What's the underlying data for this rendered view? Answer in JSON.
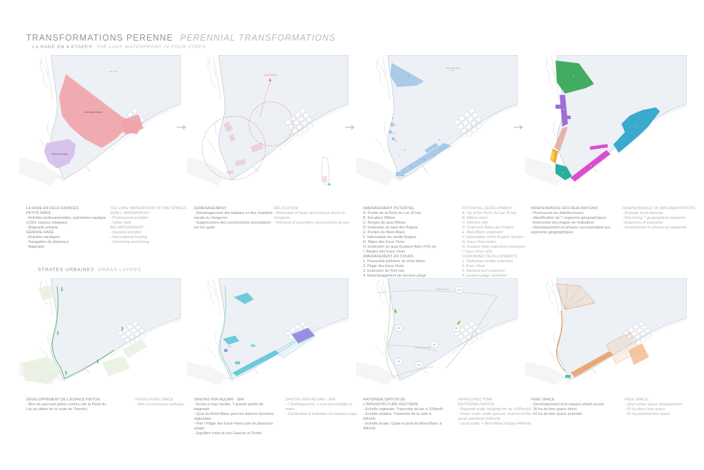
{
  "header": {
    "title_fr": "TRANSFORMATIONS PERENNE",
    "title_en": "PERENNIAL TRANSFORMATIONS",
    "subtitle_fr": "LA RADE EN 4 ETAPES",
    "subtitle_en": "THE LAKE WATERFRONT IN FOUR STEPS"
  },
  "section_urban": {
    "title_fr": "STRATES URBAINES",
    "title_en": "URBAN LAYERS"
  },
  "colors": {
    "grande_rade_pink": "#f0a3a8",
    "petite_rade_purple": "#d4bdea",
    "relocation_red": "#e25c5c",
    "potential_blue": "#9ec3e6",
    "segment_green": "#3aa65a",
    "segment_purple": "#9b6fd6",
    "segment_rose": "#e8b2a8",
    "segment_orange": "#f0a83c",
    "segment_teal": "#28b09c",
    "segment_magenta": "#d94fd0",
    "segment_cyan": "#2fa7c9",
    "walkway_green": "#3aa65a",
    "spa_cyan": "#56c3d8",
    "spa_purple": "#8f86e0",
    "freespace_orange": "#e89050"
  },
  "maps": {
    "map1": {
      "labels": {
        "lake": "LE LAC",
        "grande": "GRANDE RADE",
        "petite": "PETITE RADE"
      }
    },
    "map2": {
      "labels": {
        "vengeron": "VENGERON"
      }
    },
    "map3": {
      "labels": {
        "area1": "GRANDE RADE AREA",
        "area2": "5 HA"
      },
      "markers": [
        "A",
        "B",
        "C",
        "D",
        "E",
        "F",
        "G",
        "H",
        "I"
      ],
      "numbers": [
        "1",
        "2",
        "3",
        "4"
      ]
    },
    "map4": {
      "segments": [
        "1",
        "2",
        "3",
        "4",
        "5",
        "6",
        "7"
      ]
    },
    "map7": {
      "labels": {
        "road_top": "TRAVERSEE DU LAC",
        "road_mid": "TRAVERSEE DE LA RADE"
      },
      "badges": [
        "100",
        "60",
        "60",
        "60",
        "40",
        "40"
      ]
    }
  },
  "blocks": [
    {
      "fr": [
        "LA RADE EN DEUX ESPACES",
        "PETITE RADE",
        "- Activités professionnelles, patrimoine nautique (CGN, liaisons urbaines)",
        "- Baignade urbaine",
        "GRANDE RADE",
        "- Activités nautiques",
        "- Navigation de plaisance",
        "- Baignade"
      ],
      "en": [
        "THE LAKE WATERFRONT IN TWO SPACES",
        "SMALL WATERFRONT",
        "- Professional activities",
        "- Urban bath",
        "BIG WATERFRONT",
        "- Nautical activities",
        "- Recreational boating",
        "- Swimming and fishing"
      ]
    },
    {
      "fr": [
        "DEMENAGEMENT:",
        "- Déménagement des bateaux et des chantiers navals au Vengeron",
        "- Suppressions des constructions secondaires sur les quais"
      ],
      "en": [
        "RELOCATION",
        "- Relocation of boats and harbour docks to Vengeron",
        "- Removal of secondary constructions on pier"
      ]
    },
    {
      "fr": [
        "AMENAGEMENT POTENTIEL",
        "A. Pointe de la Perle du Lac (5 ha)",
        "B. Escaliers Wilson",
        "C. Berges du quai Wilson",
        "D. Extension du bain des Paquis",
        "E. Ponton du Mont-Blanc",
        "F. Valorisation du Jardin Anglais",
        "G. Bains des Eaux Vives",
        "H. Extension du quai Gustave Ador (470 m)",
        "I.  Berges des Eaux Vives",
        "AMENAGEMENT EN COURS",
        "1. Passerelle piétonne du mont blanc",
        "2. Plage des Eaux Vives",
        "3. Extension de Port noir",
        "4. Réaménagement de Genève plage"
      ],
      "en": [
        "POTENTIAL DEVELOPMENT",
        "A. Tip of the Perle Du Lac (5 ha)",
        "B. Wilson stairs",
        "C. Wilsons rafts",
        "D. Extension Bains des Paquis",
        "E. Mont Blanc extension",
        "F. Valorisation of the English Garden",
        "G. Eaux Vives baths",
        "H. Gustave Ador waterfront extension",
        "I. Eaux Vives rafts",
        "CONFIRMED DEVELOPMENTS",
        "1. Pedestrian bridge extension",
        "2. Eaux Vives",
        "3. Nautical port extension",
        "4. Genève plage redefined"
      ]
    },
    {
      "fr": [
        "INDEPENDANCE DES REALISATIONS",
        "- Promouvoir les intérêts locaux",
        "- Identification de 7 segments géographiques",
        "- Autonomie des étapes de réalisation",
        "- Développement en phases correspondant aux segments géographiques"
      ],
      "en": [
        "INDEPENDANCE OF IMPLEMENTATIONS",
        "- Promote local interests",
        "- Discerning 7 geographical segments",
        "- Autonomy of execution",
        "- Development in phases by segments"
      ]
    },
    {
      "fr": [
        "DEVELOPPEMENT DE L'ESPACE PIETON",
        "- 8km de parcourt piéton continu (de la Perle du Lac au début de la route de Thonon)"
      ],
      "en": [
        "PEDESTRIAN SPACE",
        "- 8km of continuous walkway"
      ]
    },
    {
      "fr": [
        "SANITAS PER AQUAM - SPA",
        "- Accès à l'eau facilité, 7 grands points de baignade",
        "- Quai du Mont-Blanc pour les liaisons lacustres régionales",
        "- Port / Plage des Eaux-Vives port de plaisance urbain",
        "- Equilibre entre la rive Gauche et Droite"
      ],
      "en": [
        "SANITAS PER AQUAM - SPA",
        "- 7 Bathing points, a new accessibility to water",
        "- Clarification & extention of nautical usage"
      ]
    },
    {
      "fr": [
        "RATIONNALISATION DE",
        "L'INFRASTRUTURE ROUTIERE",
        "- Echelle régionale: Traversée du lac à 100km/h",
        "- Echelle urbaine: Traversée de la rade à 60km/h",
        "- Echelle locale: Quais et pont du Mont-Blanc à 40km/h"
      ],
      "en": [
        "INFRASTRUCTURE",
        "RATIONNALISATION",
        "- Regional scale: bridging the lac (100km/h)",
        "- Urban scale: under ground, channel of the great waterfront (60km/h)",
        "- Local scale: + Mont-Blanc bridge (40km/h)"
      ]
    },
    {
      "fr": [
        "FREE SPACE",
        "- Développement d'un espace urbain ouvert",
        "- 36 ha de free space direct",
        "- 52 ha de free space potentiel"
      ],
      "en": [
        "FREE SPACE",
        "- Open urban space developments",
        "- 36 ha direct free space",
        "- 52 ha potential free space"
      ]
    }
  ]
}
